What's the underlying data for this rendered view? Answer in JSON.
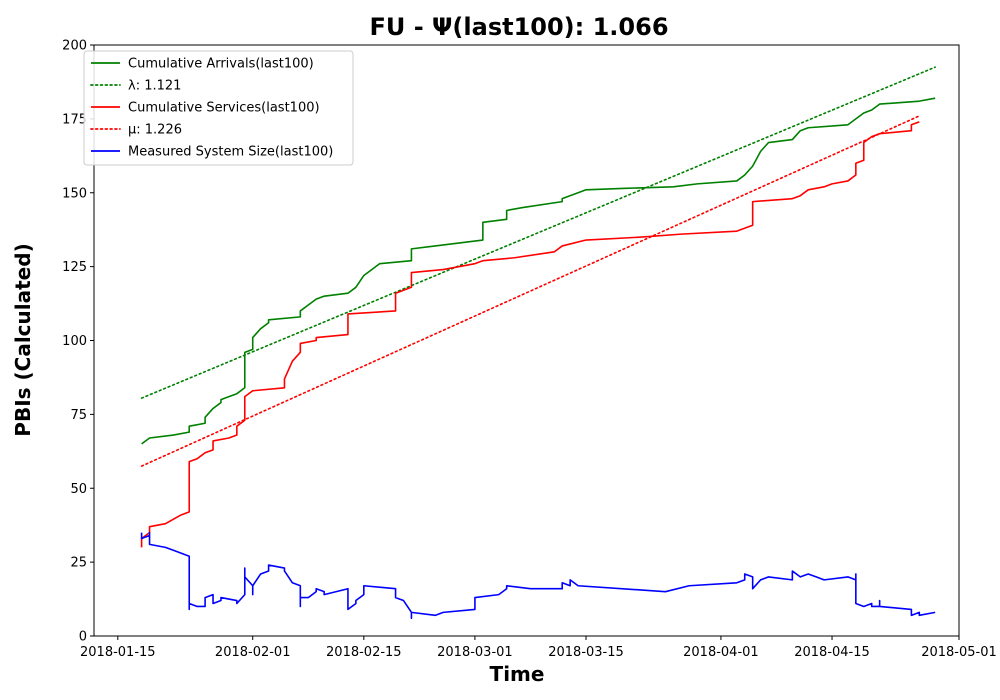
{
  "chart_data": {
    "type": "line",
    "title": "FU -  Ψ(last100): 1.066",
    "xlabel": "Time",
    "ylabel": "PBIs (Calculated)",
    "xlim": [
      "2018-01-12",
      "2018-05-01"
    ],
    "ylim": [
      0,
      200
    ],
    "x_ticks": [
      "2018-01-15",
      "2018-02-01",
      "2018-02-15",
      "2018-03-01",
      "2018-03-15",
      "2018-04-01",
      "2018-04-15",
      "2018-05-01"
    ],
    "y_ticks": [
      0,
      25,
      50,
      75,
      100,
      125,
      150,
      175,
      200
    ],
    "grid": false,
    "legend_position": "upper-left",
    "series": [
      {
        "name": "Cumulative Arrivals(last100)",
        "color": "#008000",
        "style": "solid",
        "points": [
          [
            "2018-01-18",
            65
          ],
          [
            "2018-01-19",
            67
          ],
          [
            "2018-01-22",
            68
          ],
          [
            "2018-01-24",
            69
          ],
          [
            "2018-01-24",
            71
          ],
          [
            "2018-01-26",
            72
          ],
          [
            "2018-01-26",
            74
          ],
          [
            "2018-01-27",
            77
          ],
          [
            "2018-01-28",
            79
          ],
          [
            "2018-01-28",
            80
          ],
          [
            "2018-01-29",
            81
          ],
          [
            "2018-01-30",
            82
          ],
          [
            "2018-01-31",
            84
          ],
          [
            "2018-01-31",
            91
          ],
          [
            "2018-01-31",
            96
          ],
          [
            "2018-02-01",
            97
          ],
          [
            "2018-02-01",
            101
          ],
          [
            "2018-02-02",
            104
          ],
          [
            "2018-02-03",
            106
          ],
          [
            "2018-02-03",
            107
          ],
          [
            "2018-02-07",
            108
          ],
          [
            "2018-02-07",
            110
          ],
          [
            "2018-02-08",
            112
          ],
          [
            "2018-02-09",
            114
          ],
          [
            "2018-02-10",
            115
          ],
          [
            "2018-02-13",
            116
          ],
          [
            "2018-02-14",
            118
          ],
          [
            "2018-02-15",
            122
          ],
          [
            "2018-02-16",
            124
          ],
          [
            "2018-02-17",
            126
          ],
          [
            "2018-02-21",
            127
          ],
          [
            "2018-02-21",
            131
          ],
          [
            "2018-02-24",
            132
          ],
          [
            "2018-03-02",
            134
          ],
          [
            "2018-03-02",
            140
          ],
          [
            "2018-03-05",
            141
          ],
          [
            "2018-03-05",
            144
          ],
          [
            "2018-03-07",
            145
          ],
          [
            "2018-03-12",
            147
          ],
          [
            "2018-03-12",
            148
          ],
          [
            "2018-03-14",
            150
          ],
          [
            "2018-03-15",
            151
          ],
          [
            "2018-03-20",
            151.5
          ],
          [
            "2018-03-26",
            152
          ],
          [
            "2018-03-29",
            153
          ],
          [
            "2018-04-03",
            154
          ],
          [
            "2018-04-04",
            156
          ],
          [
            "2018-04-05",
            159
          ],
          [
            "2018-04-06",
            164
          ],
          [
            "2018-04-07",
            167
          ],
          [
            "2018-04-10",
            168
          ],
          [
            "2018-04-11",
            171
          ],
          [
            "2018-04-12",
            172
          ],
          [
            "2018-04-17",
            173
          ],
          [
            "2018-04-18",
            175
          ],
          [
            "2018-04-19",
            177
          ],
          [
            "2018-04-20",
            178
          ],
          [
            "2018-04-21",
            180
          ],
          [
            "2018-04-26",
            181
          ],
          [
            "2018-04-28",
            182
          ]
        ]
      },
      {
        "name": "λ: 1.121",
        "color": "#008000",
        "style": "dotted",
        "points": [
          [
            "2018-01-18",
            80.5
          ],
          [
            "2018-04-28",
            192.5
          ]
        ]
      },
      {
        "name": "Cumulative Services(last100)",
        "color": "#ff0000",
        "style": "solid",
        "points": [
          [
            "2018-01-18",
            30
          ],
          [
            "2018-01-18",
            33
          ],
          [
            "2018-01-19",
            35
          ],
          [
            "2018-01-19",
            37
          ],
          [
            "2018-01-21",
            38
          ],
          [
            "2018-01-23",
            41
          ],
          [
            "2018-01-24",
            42
          ],
          [
            "2018-01-24",
            59
          ],
          [
            "2018-01-25",
            60
          ],
          [
            "2018-01-26",
            62
          ],
          [
            "2018-01-27",
            63
          ],
          [
            "2018-01-27",
            66
          ],
          [
            "2018-01-29",
            67
          ],
          [
            "2018-01-30",
            68
          ],
          [
            "2018-01-30",
            71
          ],
          [
            "2018-01-31",
            73
          ],
          [
            "2018-01-31",
            81
          ],
          [
            "2018-02-01",
            83
          ],
          [
            "2018-02-05",
            84
          ],
          [
            "2018-02-05",
            87
          ],
          [
            "2018-02-06",
            93
          ],
          [
            "2018-02-07",
            96
          ],
          [
            "2018-02-07",
            99
          ],
          [
            "2018-02-09",
            100
          ],
          [
            "2018-02-09",
            101
          ],
          [
            "2018-02-13",
            102
          ],
          [
            "2018-02-13",
            109
          ],
          [
            "2018-02-19",
            110
          ],
          [
            "2018-02-19",
            116
          ],
          [
            "2018-02-21",
            118
          ],
          [
            "2018-02-21",
            123
          ],
          [
            "2018-02-25",
            124
          ],
          [
            "2018-03-01",
            126
          ],
          [
            "2018-03-02",
            127
          ],
          [
            "2018-03-06",
            128
          ],
          [
            "2018-03-11",
            130
          ],
          [
            "2018-03-12",
            132
          ],
          [
            "2018-03-15",
            134
          ],
          [
            "2018-03-22",
            135
          ],
          [
            "2018-03-27",
            136
          ],
          [
            "2018-04-03",
            137
          ],
          [
            "2018-04-05",
            139
          ],
          [
            "2018-04-05",
            147
          ],
          [
            "2018-04-10",
            148
          ],
          [
            "2018-04-11",
            149
          ],
          [
            "2018-04-12",
            151
          ],
          [
            "2018-04-14",
            152
          ],
          [
            "2018-04-15",
            153
          ],
          [
            "2018-04-17",
            154
          ],
          [
            "2018-04-18",
            156
          ],
          [
            "2018-04-18",
            160
          ],
          [
            "2018-04-19",
            161
          ],
          [
            "2018-04-19",
            167
          ],
          [
            "2018-04-20",
            169
          ],
          [
            "2018-04-21",
            170
          ],
          [
            "2018-04-25",
            171
          ],
          [
            "2018-04-25",
            173
          ],
          [
            "2018-04-26",
            174
          ]
        ]
      },
      {
        "name": "μ: 1.226",
        "color": "#ff0000",
        "style": "dotted",
        "points": [
          [
            "2018-01-18",
            57.5
          ],
          [
            "2018-04-26",
            176
          ]
        ]
      },
      {
        "name": "Measured System Size(last100)",
        "color": "#0000ff",
        "style": "solid",
        "points": [
          [
            "2018-01-18",
            35
          ],
          [
            "2018-01-18",
            33
          ],
          [
            "2018-01-19",
            34
          ],
          [
            "2018-01-19",
            32
          ],
          [
            "2018-01-19",
            35
          ],
          [
            "2018-01-19",
            31
          ],
          [
            "2018-01-21",
            30
          ],
          [
            "2018-01-22",
            29
          ],
          [
            "2018-01-23",
            28
          ],
          [
            "2018-01-24",
            27
          ],
          [
            "2018-01-24",
            9
          ],
          [
            "2018-01-24",
            11
          ],
          [
            "2018-01-25",
            10
          ],
          [
            "2018-01-26",
            10
          ],
          [
            "2018-01-26",
            13
          ],
          [
            "2018-01-27",
            14
          ],
          [
            "2018-01-27",
            11
          ],
          [
            "2018-01-28",
            12
          ],
          [
            "2018-01-28",
            13
          ],
          [
            "2018-01-30",
            12
          ],
          [
            "2018-01-30",
            11
          ],
          [
            "2018-01-31",
            14
          ],
          [
            "2018-01-31",
            23
          ],
          [
            "2018-01-31",
            20
          ],
          [
            "2018-02-01",
            17
          ],
          [
            "2018-02-01",
            14
          ],
          [
            "2018-02-01",
            17
          ],
          [
            "2018-02-02",
            21
          ],
          [
            "2018-02-03",
            22
          ],
          [
            "2018-02-03",
            24
          ],
          [
            "2018-02-05",
            23
          ],
          [
            "2018-02-05",
            22
          ],
          [
            "2018-02-06",
            18
          ],
          [
            "2018-02-07",
            17
          ],
          [
            "2018-02-07",
            10
          ],
          [
            "2018-02-07",
            13
          ],
          [
            "2018-02-08",
            13
          ],
          [
            "2018-02-09",
            15
          ],
          [
            "2018-02-09",
            16
          ],
          [
            "2018-02-10",
            15
          ],
          [
            "2018-02-10",
            14
          ],
          [
            "2018-02-13",
            16
          ],
          [
            "2018-02-13",
            9
          ],
          [
            "2018-02-14",
            11
          ],
          [
            "2018-02-14",
            12
          ],
          [
            "2018-02-15",
            14
          ],
          [
            "2018-02-15",
            17
          ],
          [
            "2018-02-19",
            16
          ],
          [
            "2018-02-19",
            13
          ],
          [
            "2018-02-20",
            12
          ],
          [
            "2018-02-21",
            8
          ],
          [
            "2018-02-21",
            6
          ],
          [
            "2018-02-21",
            8
          ],
          [
            "2018-02-24",
            7
          ],
          [
            "2018-02-25",
            8
          ],
          [
            "2018-03-01",
            9
          ],
          [
            "2018-03-01",
            13
          ],
          [
            "2018-03-04",
            14
          ],
          [
            "2018-03-05",
            16
          ],
          [
            "2018-03-05",
            17
          ],
          [
            "2018-03-08",
            16
          ],
          [
            "2018-03-12",
            16
          ],
          [
            "2018-03-12",
            18
          ],
          [
            "2018-03-13",
            17
          ],
          [
            "2018-03-13",
            19
          ],
          [
            "2018-03-14",
            17
          ],
          [
            "2018-03-25",
            15
          ],
          [
            "2018-03-28",
            17
          ],
          [
            "2018-04-03",
            18
          ],
          [
            "2018-04-04",
            19
          ],
          [
            "2018-04-04",
            21
          ],
          [
            "2018-04-05",
            20
          ],
          [
            "2018-04-05",
            16
          ],
          [
            "2018-04-06",
            19
          ],
          [
            "2018-04-07",
            20
          ],
          [
            "2018-04-10",
            19
          ],
          [
            "2018-04-10",
            22
          ],
          [
            "2018-04-11",
            20
          ],
          [
            "2018-04-12",
            21
          ],
          [
            "2018-04-13",
            20
          ],
          [
            "2018-04-14",
            19
          ],
          [
            "2018-04-17",
            20
          ],
          [
            "2018-04-18",
            19
          ],
          [
            "2018-04-18",
            21
          ],
          [
            "2018-04-18",
            11
          ],
          [
            "2018-04-19",
            10
          ],
          [
            "2018-04-20",
            11
          ],
          [
            "2018-04-20",
            10
          ],
          [
            "2018-04-21",
            10
          ],
          [
            "2018-04-21",
            12
          ],
          [
            "2018-04-21",
            10
          ],
          [
            "2018-04-25",
            9
          ],
          [
            "2018-04-25",
            7
          ],
          [
            "2018-04-26",
            8
          ],
          [
            "2018-04-26",
            7
          ],
          [
            "2018-04-28",
            8
          ]
        ]
      }
    ]
  }
}
